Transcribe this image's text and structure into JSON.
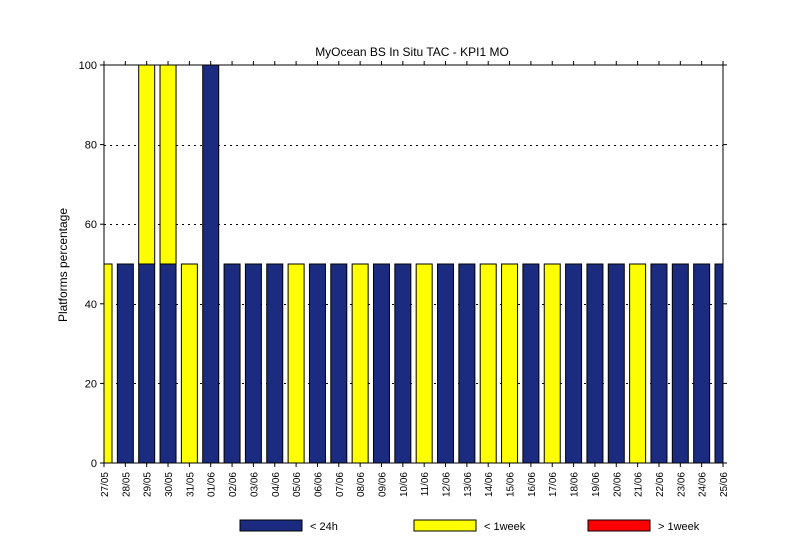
{
  "chart_data": {
    "type": "bar",
    "stacked": true,
    "title": "MyOcean  BS In Situ TAC - KPI1  MO",
    "ylabel": "Platforms percentage",
    "xlabel": "",
    "ylim": [
      0,
      100
    ],
    "yticks": [
      0,
      20,
      40,
      60,
      80,
      100
    ],
    "grid": "horizontal dotted",
    "categories": [
      "27/05",
      "28/05",
      "29/05",
      "30/05",
      "31/05",
      "01/06",
      "02/06",
      "03/06",
      "04/06",
      "05/06",
      "06/06",
      "07/06",
      "08/06",
      "09/06",
      "10/06",
      "11/06",
      "12/06",
      "13/06",
      "14/06",
      "15/06",
      "16/06",
      "17/06",
      "18/06",
      "19/06",
      "20/06",
      "21/06",
      "22/06",
      "23/06",
      "24/06",
      "25/06"
    ],
    "series": [
      {
        "name": "< 24h",
        "color": "#1a2b80",
        "values": [
          0,
          50,
          50,
          50,
          0,
          100,
          50,
          50,
          50,
          0,
          50,
          50,
          0,
          50,
          50,
          0,
          50,
          50,
          0,
          0,
          50,
          0,
          50,
          50,
          50,
          0,
          50,
          50,
          50,
          50
        ]
      },
      {
        "name": "< 1week",
        "color": "#ffff00",
        "values": [
          50,
          0,
          50,
          50,
          50,
          0,
          0,
          0,
          0,
          50,
          0,
          0,
          50,
          0,
          0,
          50,
          0,
          0,
          50,
          50,
          0,
          50,
          0,
          0,
          0,
          50,
          0,
          0,
          0,
          0
        ]
      },
      {
        "name": "> 1week",
        "color": "#ff0000",
        "values": [
          0,
          0,
          0,
          0,
          0,
          0,
          0,
          0,
          0,
          0,
          0,
          0,
          0,
          0,
          0,
          0,
          0,
          0,
          0,
          0,
          0,
          0,
          0,
          0,
          0,
          0,
          0,
          0,
          0,
          0
        ]
      }
    ],
    "legend": "bottom-center"
  }
}
